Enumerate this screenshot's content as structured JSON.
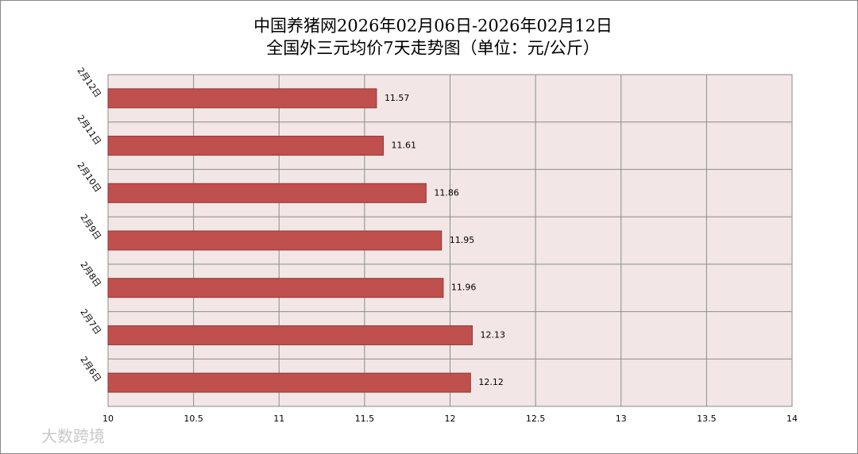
{
  "chart_data": {
    "type": "bar",
    "orientation": "horizontal",
    "title": "中国养猪网2026年02月06日-2026年02月12日",
    "subtitle": "全国外三元均价7天走势图（单位：元/公斤）",
    "categories": [
      "2月12日",
      "2月11日",
      "2月10日",
      "2月9日",
      "2月8日",
      "2月7日",
      "2月6日"
    ],
    "values": [
      11.57,
      11.61,
      11.86,
      11.95,
      11.96,
      12.13,
      12.12
    ],
    "color": "#c0504d",
    "xlim": [
      10,
      14
    ],
    "xticks": [
      10,
      10.5,
      11,
      11.5,
      12,
      12.5,
      13,
      13.5,
      14
    ],
    "grid": true,
    "watermark": "大数跨境"
  }
}
